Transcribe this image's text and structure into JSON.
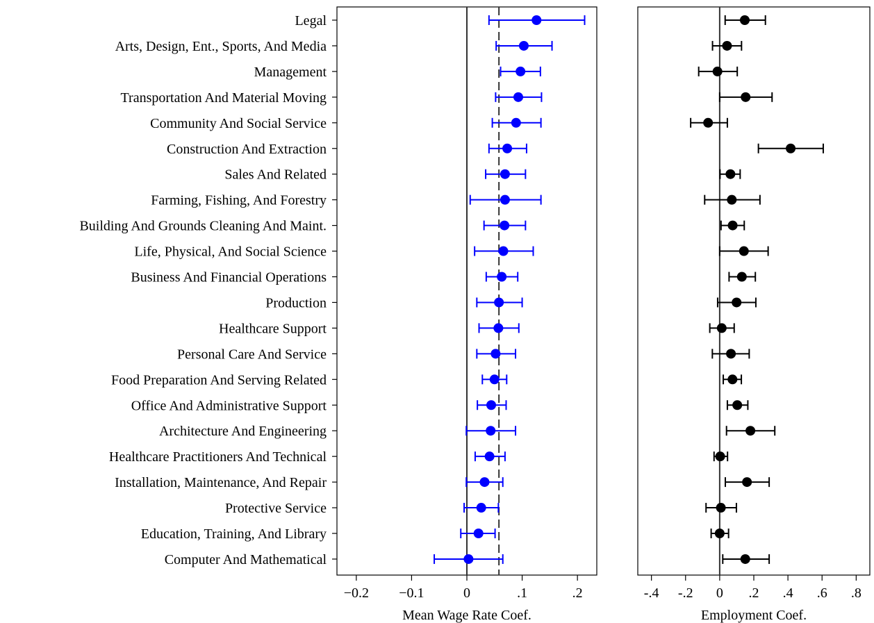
{
  "chart_data": [
    {
      "type": "scatter",
      "title": "",
      "xlabel": "Mean Wage Rate Coef.",
      "xlim": [
        -0.235,
        0.235
      ],
      "xticks": [
        -0.2,
        -0.1,
        0,
        0.1,
        0.2
      ],
      "xtick_labels": [
        "−0.2",
        "−0.1",
        "0",
        ".1",
        ".2"
      ],
      "reference_lines": {
        "solid": 0,
        "dashed": 0.058
      },
      "marker_color": "#0000ff",
      "categories": [
        "Legal",
        "Arts, Design, Ent., Sports, And Media",
        "Management",
        "Transportation And Material Moving",
        "Community And Social Service",
        "Construction And Extraction",
        "Sales And Related",
        "Farming, Fishing, And Forestry",
        "Building And Grounds Cleaning And Maint.",
        "Life, Physical, And Social Science",
        "Business And Financial Operations",
        "Production",
        "Healthcare Support",
        "Personal Care And Service",
        "Food Preparation And Serving Related",
        "Office And Administrative Support",
        "Architecture And Engineering",
        "Healthcare Practitioners And Technical",
        "Installation, Maintenance, And Repair",
        "Protective Service",
        "Education, Training, And Library",
        "Computer And Mathematical"
      ],
      "estimate": [
        0.126,
        0.103,
        0.097,
        0.093,
        0.089,
        0.073,
        0.069,
        0.069,
        0.068,
        0.066,
        0.063,
        0.058,
        0.057,
        0.052,
        0.05,
        0.044,
        0.043,
        0.041,
        0.032,
        0.026,
        0.021,
        0.003
      ],
      "ci_low": [
        0.04,
        0.053,
        0.061,
        0.052,
        0.046,
        0.04,
        0.034,
        0.006,
        0.031,
        0.014,
        0.035,
        0.018,
        0.022,
        0.018,
        0.028,
        0.019,
        -0.001,
        0.015,
        -0.001,
        -0.005,
        -0.011,
        -0.059
      ],
      "ci_high": [
        0.213,
        0.154,
        0.133,
        0.135,
        0.134,
        0.108,
        0.106,
        0.134,
        0.106,
        0.12,
        0.092,
        0.1,
        0.094,
        0.088,
        0.072,
        0.071,
        0.088,
        0.069,
        0.065,
        0.057,
        0.051,
        0.065
      ]
    },
    {
      "type": "scatter",
      "title": "",
      "xlabel": "Employment Coef.",
      "xlim": [
        -0.48,
        0.88
      ],
      "xticks": [
        -0.4,
        -0.2,
        0,
        0.2,
        0.4,
        0.6,
        0.8
      ],
      "xtick_labels": [
        "-.4",
        "-.2",
        "0",
        ".2",
        ".4",
        ".6",
        ".8"
      ],
      "reference_lines": {
        "solid": 0
      },
      "marker_color": "#000000",
      "categories": "same as first panel",
      "estimate": [
        0.147,
        0.043,
        -0.013,
        0.152,
        -0.068,
        0.416,
        0.063,
        0.071,
        0.076,
        0.142,
        0.13,
        0.099,
        0.012,
        0.066,
        0.075,
        0.103,
        0.18,
        0.003,
        0.16,
        0.007,
        0.0,
        0.15
      ],
      "ci_low": [
        0.032,
        -0.042,
        -0.123,
        0.0,
        -0.17,
        0.227,
        0.002,
        -0.088,
        0.008,
        0.0,
        0.055,
        -0.012,
        -0.058,
        -0.043,
        0.021,
        0.045,
        0.04,
        -0.033,
        0.033,
        -0.08,
        -0.05,
        0.018
      ],
      "ci_high": [
        0.268,
        0.128,
        0.103,
        0.307,
        0.045,
        0.607,
        0.12,
        0.236,
        0.144,
        0.284,
        0.209,
        0.212,
        0.085,
        0.173,
        0.127,
        0.165,
        0.323,
        0.046,
        0.29,
        0.098,
        0.052,
        0.29
      ]
    }
  ]
}
